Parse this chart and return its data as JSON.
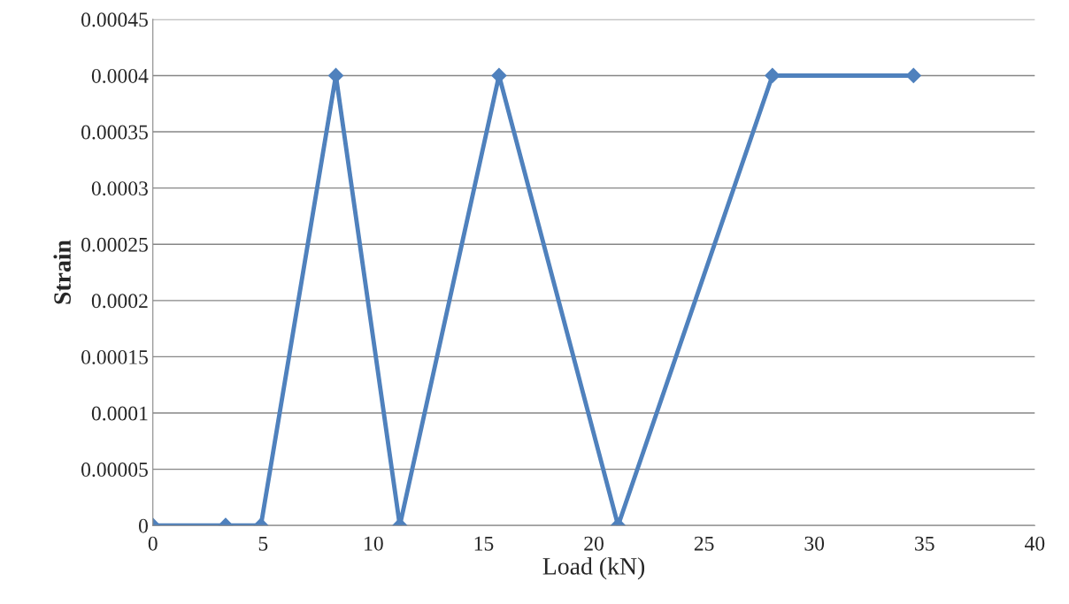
{
  "chart_data": {
    "type": "line",
    "xlabel": "Load (kN)",
    "ylabel": "Strain",
    "x": [
      0,
      3.3,
      4.9,
      8.3,
      11.2,
      15.7,
      21.1,
      28.1,
      34.5
    ],
    "series": [
      {
        "color": "#4f81bd",
        "values": [
          0,
          0,
          0,
          0.0004,
          0,
          0.0004,
          0,
          0.0004,
          0.0004
        ]
      }
    ],
    "xlim": [
      0,
      40
    ],
    "xticks": [
      0,
      5,
      10,
      15,
      20,
      25,
      30,
      35,
      40
    ],
    "ylim": [
      0,
      0.00045
    ],
    "yticks": [
      {
        "value": 0,
        "label": "0"
      },
      {
        "value": 5e-05,
        "label": "0.00005"
      },
      {
        "value": 0.0001,
        "label": "0.0001"
      },
      {
        "value": 0.00015,
        "label": "0.00015"
      },
      {
        "value": 0.0002,
        "label": "0.0002"
      },
      {
        "value": 0.00025,
        "label": "0.00025"
      },
      {
        "value": 0.0003,
        "label": "0.0003"
      },
      {
        "value": 0.00035,
        "label": "0.00035"
      },
      {
        "value": 0.0004,
        "label": "0.0004"
      },
      {
        "value": 0.00045,
        "label": "0.00045"
      }
    ],
    "grid": "y",
    "marker": "diamond",
    "line_style": "solid",
    "legend": false
  }
}
